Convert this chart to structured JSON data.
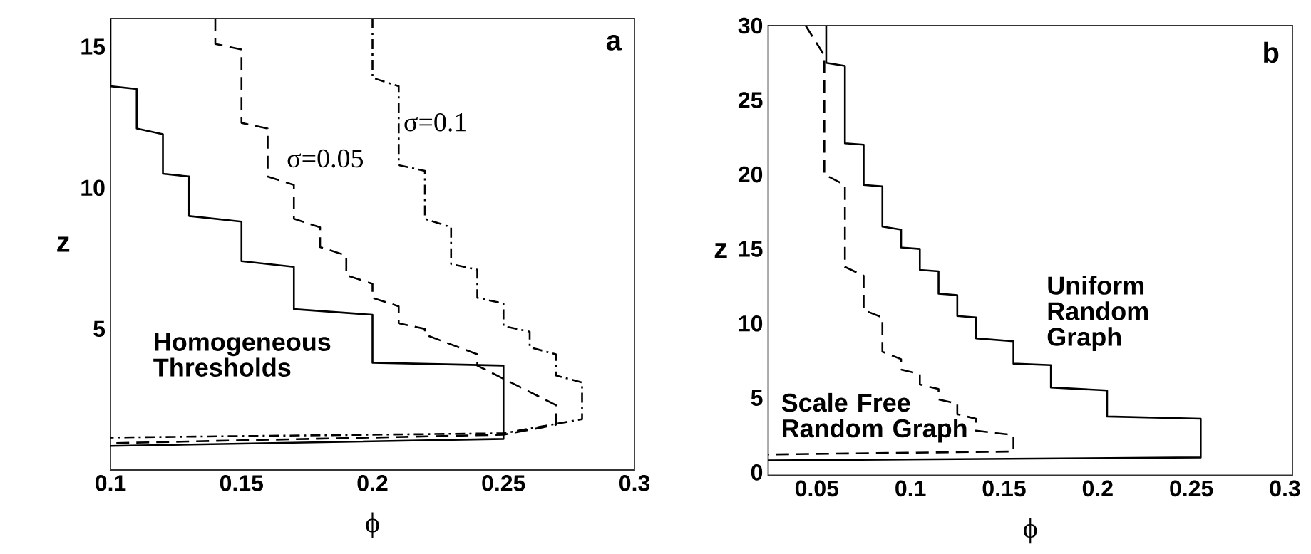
{
  "chart_data": [
    {
      "type": "line",
      "title": "a",
      "xlabel": "ϕ",
      "ylabel": "z",
      "xlim": [
        0.1,
        0.3
      ],
      "ylim": [
        0,
        16
      ],
      "xticks": [
        0.1,
        0.15,
        0.2,
        0.25,
        0.3
      ],
      "yticks": [
        5,
        10,
        15
      ],
      "series": [
        {
          "name": "Homogeneous Thresholds",
          "color": "#000000",
          "line_style": "solid",
          "x": [
            0.1,
            0.1,
            0.11,
            0.11,
            0.12,
            0.12,
            0.13,
            0.13,
            0.15,
            0.15,
            0.17,
            0.17,
            0.2,
            0.2,
            0.25,
            0.25,
            0.1
          ],
          "values": [
            16,
            13.6,
            13.5,
            12.1,
            11.9,
            10.5,
            10.4,
            9.0,
            8.8,
            7.4,
            7.2,
            5.7,
            5.5,
            3.8,
            3.7,
            1.1,
            0.85
          ]
        },
        {
          "name": "σ=0.05",
          "color": "#000000",
          "line_style": "dashed",
          "x": [
            0.14,
            0.14,
            0.15,
            0.15,
            0.16,
            0.16,
            0.17,
            0.17,
            0.18,
            0.18,
            0.19,
            0.19,
            0.2,
            0.2,
            0.21,
            0.21,
            0.22,
            0.22,
            0.24,
            0.24,
            0.27,
            0.27,
            0.25,
            0.1
          ],
          "values": [
            16,
            15.1,
            14.9,
            12.3,
            12.1,
            10.4,
            10.1,
            8.9,
            8.6,
            7.9,
            7.6,
            6.9,
            6.6,
            6.1,
            5.8,
            5.2,
            5.0,
            4.8,
            4.1,
            3.7,
            2.3,
            1.6,
            1.25,
            0.95
          ]
        },
        {
          "name": "σ=0.1",
          "color": "#000000",
          "line_style": "dashdot",
          "x": [
            0.2,
            0.2,
            0.21,
            0.21,
            0.22,
            0.22,
            0.23,
            0.23,
            0.24,
            0.24,
            0.25,
            0.25,
            0.26,
            0.26,
            0.27,
            0.27,
            0.28,
            0.28,
            0.25,
            0.1
          ],
          "values": [
            16,
            13.9,
            13.6,
            10.8,
            10.6,
            8.9,
            8.6,
            7.3,
            7.1,
            6.1,
            5.9,
            5.1,
            4.9,
            4.35,
            4.1,
            3.35,
            3.1,
            1.8,
            1.3,
            1.15
          ]
        }
      ]
    },
    {
      "type": "line",
      "title": "b",
      "xlabel": "ϕ",
      "ylabel": "z",
      "xlim": [
        0.024,
        0.304
      ],
      "ylim": [
        -0.2,
        30
      ],
      "xticks": [
        0.05,
        0.1,
        0.15,
        0.2,
        0.25,
        0.3
      ],
      "yticks": [
        0,
        5,
        10,
        15,
        20,
        25,
        30
      ],
      "series": [
        {
          "name": "Uniform Random Graph",
          "color": "#000000",
          "line_style": "solid",
          "x": [
            0.055,
            0.055,
            0.065,
            0.065,
            0.075,
            0.075,
            0.085,
            0.085,
            0.095,
            0.095,
            0.105,
            0.105,
            0.115,
            0.115,
            0.125,
            0.125,
            0.135,
            0.135,
            0.155,
            0.155,
            0.175,
            0.175,
            0.205,
            0.205,
            0.255,
            0.255,
            0.024
          ],
          "values": [
            30,
            27.5,
            27.3,
            22.1,
            22.0,
            19.3,
            19.2,
            16.5,
            16.3,
            15.1,
            15.0,
            13.6,
            13.5,
            12.0,
            11.9,
            10.5,
            10.4,
            9.0,
            8.8,
            7.3,
            7.2,
            5.7,
            5.5,
            3.75,
            3.6,
            1.0,
            0.8
          ]
        },
        {
          "name": "Scale Free Random Graph",
          "color": "#000000",
          "line_style": "dashed",
          "x": [
            0.044,
            0.054,
            0.054,
            0.065,
            0.065,
            0.075,
            0.075,
            0.085,
            0.085,
            0.095,
            0.095,
            0.105,
            0.105,
            0.115,
            0.115,
            0.125,
            0.125,
            0.135,
            0.135,
            0.155,
            0.155,
            0.024
          ],
          "values": [
            30,
            28.0,
            20.0,
            19.3,
            13.8,
            13.2,
            10.9,
            10.4,
            8.1,
            7.6,
            6.9,
            6.6,
            5.9,
            5.6,
            4.9,
            4.6,
            3.9,
            3.6,
            2.8,
            2.5,
            1.4,
            1.2
          ]
        }
      ]
    }
  ]
}
